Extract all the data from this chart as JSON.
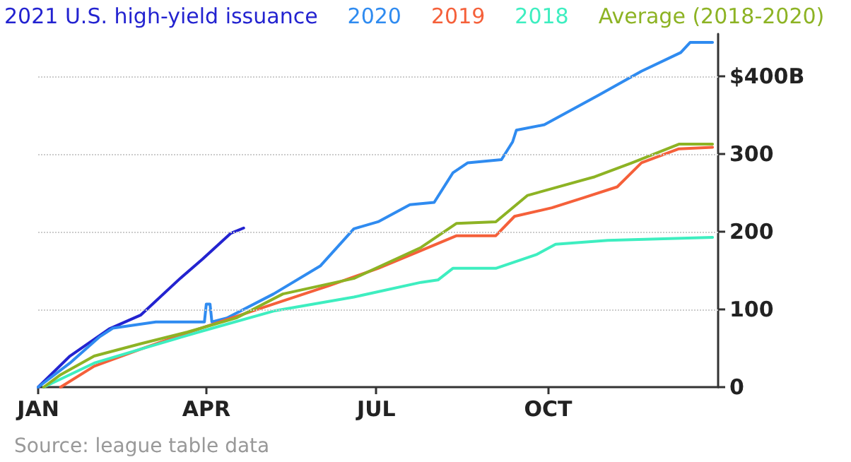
{
  "chart_data": {
    "type": "line",
    "series": [
      {
        "name": "2021 U.S. high-yield issuance",
        "color": "#2323d0",
        "x": [
          "--01-01",
          "--01-18",
          "--02-08",
          "--02-25",
          "--03-18",
          "--03-30",
          "--04-14",
          "--04-21"
        ],
        "values": [
          0,
          40,
          75,
          93,
          140,
          165,
          198,
          205
        ]
      },
      {
        "name": "2020",
        "color": "#2f8bf0",
        "x": [
          "--01-01",
          "--01-18",
          "--02-03",
          "--02-10",
          "--03-05",
          "--03-31",
          "--04-01",
          "--04-03",
          "--04-04",
          "--04-12",
          "--05-07",
          "--06-01",
          "--06-19",
          "--07-02",
          "--07-19",
          "--08-01",
          "--08-11",
          "--08-19",
          "--09-06",
          "--09-12",
          "--09-14",
          "--09-29",
          "--10-28",
          "--11-20",
          "--12-11",
          "--12-16",
          "--12-28"
        ],
        "values": [
          0,
          31,
          65,
          76,
          84,
          84,
          107,
          107,
          84,
          89,
          120,
          156,
          204,
          213,
          235,
          238,
          276,
          289,
          293,
          316,
          331,
          338,
          376,
          407,
          431,
          444,
          444
        ]
      },
      {
        "name": "2019",
        "color": "#f5603a",
        "x": [
          "--01-13",
          "--01-31",
          "--02-25",
          "--03-28",
          "--05-07",
          "--06-06",
          "--07-02",
          "--07-25",
          "--08-13",
          "--09-03",
          "--09-13",
          "--10-03",
          "--10-20",
          "--11-07",
          "--11-20",
          "--12-10",
          "--12-28"
        ],
        "values": [
          0,
          27,
          49,
          75,
          107,
          131,
          153,
          176,
          195,
          195,
          220,
          231,
          244,
          258,
          289,
          307,
          309
        ]
      },
      {
        "name": "2018",
        "color": "#3eeec0",
        "x": [
          "--01-04",
          "--01-31",
          "--02-25",
          "--03-28",
          "--05-07",
          "--06-19",
          "--07-25",
          "--08-03",
          "--08-11",
          "--09-03",
          "--09-25",
          "--10-05",
          "--11-02",
          "--12-28"
        ],
        "values": [
          0,
          31,
          49,
          71,
          98,
          116,
          135,
          138,
          153,
          153,
          171,
          184,
          189,
          193
        ]
      },
      {
        "name": "Average (2018-2020)",
        "color": "#8db324",
        "x": [
          "--01-04",
          "--01-13",
          "--01-31",
          "--02-25",
          "--03-22",
          "--04-17",
          "--05-12",
          "--06-19",
          "--07-25",
          "--08-13",
          "--09-03",
          "--09-20",
          "--10-26",
          "--11-15",
          "--12-10",
          "--12-28"
        ],
        "values": [
          0,
          16,
          40,
          56,
          71,
          89,
          120,
          140,
          180,
          211,
          213,
          247,
          271,
          289,
          313,
          313
        ]
      }
    ],
    "xlim": [
      "--01-01",
      "--12-31"
    ],
    "xticks": [
      {
        "value": "--01-01",
        "label": "JAN"
      },
      {
        "value": "--04-01",
        "label": "APR"
      },
      {
        "value": "--07-01",
        "label": "JUL"
      },
      {
        "value": "--10-01",
        "label": "OCT"
      }
    ],
    "ylim": [
      0,
      455
    ],
    "yticks": [
      0,
      100,
      200,
      300,
      {
        "value": 400,
        "label": "$400B"
      }
    ],
    "grid": "y",
    "legend": "top",
    "marker": "none",
    "line_style": "solid",
    "annotations": [
      "Source: league table data"
    ]
  }
}
